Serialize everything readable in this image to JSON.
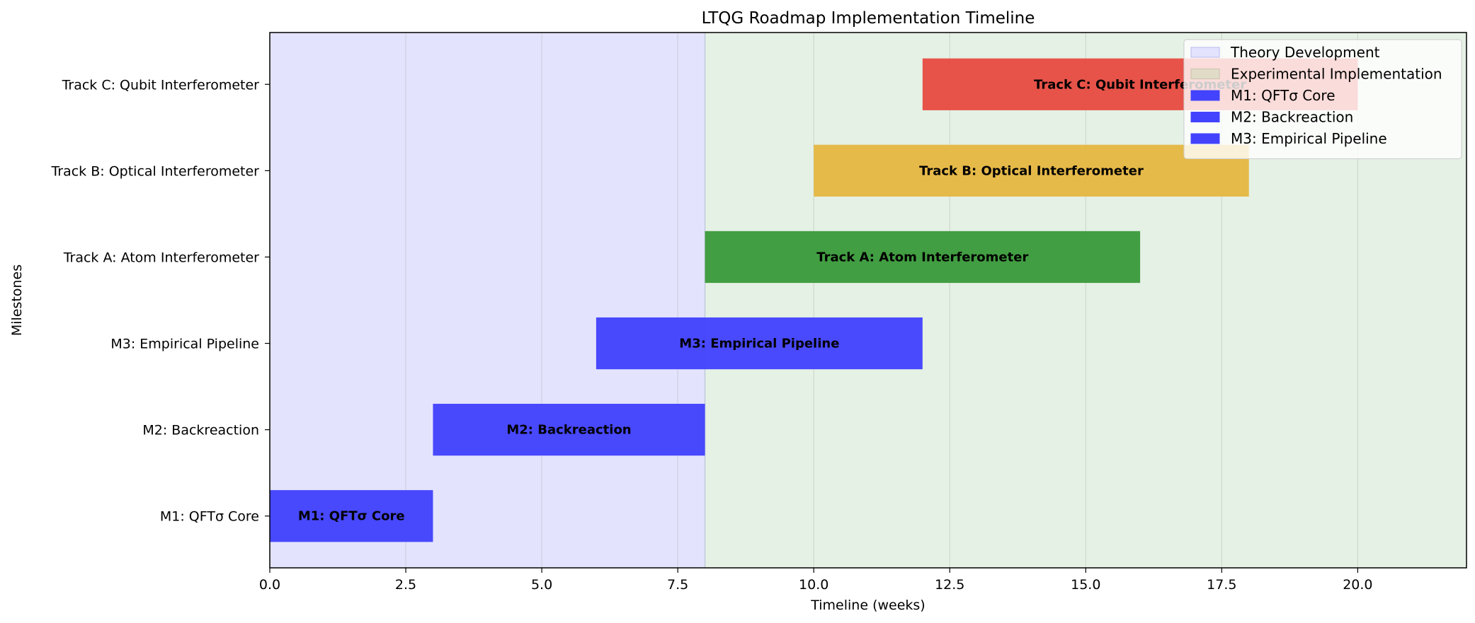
{
  "chart_data": {
    "type": "bar",
    "orientation": "horizontal",
    "title": "LTQG Roadmap Implementation Timeline",
    "xlabel": "Timeline (weeks)",
    "ylabel": "Milestones",
    "xlim": [
      0,
      22
    ],
    "x_ticks": [
      0,
      2.5,
      5,
      7.5,
      10,
      12.5,
      15,
      17.5,
      20
    ],
    "x_tick_labels": [
      "0.0",
      "2.5",
      "5.0",
      "7.5",
      "10.0",
      "12.5",
      "15.0",
      "17.5",
      "20.0"
    ],
    "grid": "x",
    "legend_position": "top-right",
    "phases": [
      {
        "name": "Theory Development",
        "start": 0,
        "end": 8,
        "color": "#e3e3fd"
      },
      {
        "name": "Experimental Implementation",
        "start": 8,
        "end": 22,
        "color": "#e5f1e5"
      }
    ],
    "tasks": [
      {
        "name": "M1: QFTσ Core",
        "start": 0,
        "end": 3,
        "color": "#4343fd"
      },
      {
        "name": "M2: Backreaction",
        "start": 3,
        "end": 8,
        "color": "#4343fd"
      },
      {
        "name": "M3: Empirical Pipeline",
        "start": 6,
        "end": 12,
        "color": "#4343fd"
      },
      {
        "name": "Track A: Atom Interferometer",
        "start": 8,
        "end": 16,
        "color": "#3c9b3c"
      },
      {
        "name": "Track B: Optical Interferometer",
        "start": 10,
        "end": 18,
        "color": "#e5b843"
      },
      {
        "name": "Track C: Qubit Interferometer",
        "start": 12,
        "end": 20,
        "color": "#e64d43"
      }
    ],
    "legend": [
      {
        "label": "Theory Development",
        "color": "#e3e3fd",
        "edge": "#b8b8f0"
      },
      {
        "label": "Experimental Implementation",
        "color": "#e0dcc8",
        "edge": "#c8c4ac"
      },
      {
        "label": "M1: QFTσ Core",
        "color": "#4343fd",
        "edge": "#4343fd"
      },
      {
        "label": "M2: Backreaction",
        "color": "#4343fd",
        "edge": "#4343fd"
      },
      {
        "label": "M3: Empirical Pipeline",
        "color": "#4343fd",
        "edge": "#4343fd"
      }
    ]
  }
}
